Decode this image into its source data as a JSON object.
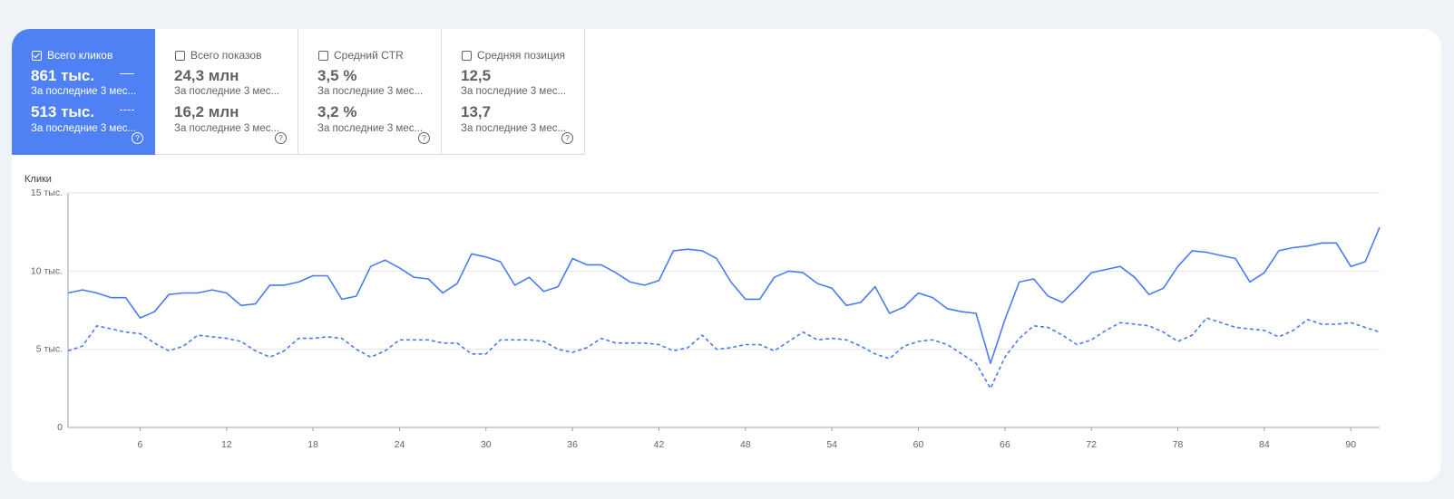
{
  "tiles": [
    {
      "label": "Всего кликов",
      "checked": true,
      "value1": "861 тыс.",
      "sub1": "За последние 3 мес...",
      "value2": "513 тыс.",
      "sub2": "За последние 3 мес...",
      "help": "?"
    },
    {
      "label": "Всего показов",
      "checked": false,
      "value1": "24,3 млн",
      "sub1": "За последние 3 мес...",
      "value2": "16,2 млн",
      "sub2": "За последние 3 мес...",
      "help": "?"
    },
    {
      "label": "Средний CTR",
      "checked": false,
      "value1": "3,5 %",
      "sub1": "За последние 3 мес...",
      "value2": "3,2 %",
      "sub2": "За последние 3 мес...",
      "help": "?"
    },
    {
      "label": "Средняя позиция",
      "checked": false,
      "value1": "12,5",
      "sub1": "За последние 3 мес...",
      "value2": "13,7",
      "sub2": "За последние 3 мес...",
      "help": "?"
    }
  ],
  "colors": {
    "accent": "#4f81f5",
    "line": "#4a7cf0",
    "grid": "#e6e6e6",
    "axis": "#9aa0a6",
    "text": "#5f6368"
  },
  "chart_data": {
    "type": "line",
    "ylabel": "Клики",
    "ylim": [
      0,
      15000
    ],
    "yticks": [
      {
        "v": 0,
        "label": "0"
      },
      {
        "v": 5000,
        "label": "5 тыс."
      },
      {
        "v": 10000,
        "label": "10 тыс."
      },
      {
        "v": 15000,
        "label": "15 тыс."
      }
    ],
    "xlim": [
      1,
      92
    ],
    "xticks": [
      6,
      12,
      18,
      24,
      30,
      36,
      42,
      48,
      54,
      60,
      66,
      72,
      78,
      84,
      90
    ],
    "grid": true,
    "series": [
      {
        "style": "solid",
        "values": [
          8600,
          8800,
          8600,
          8300,
          8300,
          7000,
          7400,
          8500,
          8600,
          8600,
          8800,
          8600,
          7800,
          7900,
          9100,
          9100,
          9300,
          9700,
          9700,
          8200,
          8400,
          10300,
          10700,
          10200,
          9600,
          9500,
          8600,
          9200,
          11100,
          10900,
          10600,
          9100,
          9600,
          8700,
          9000,
          10800,
          10400,
          10400,
          9900,
          9300,
          9100,
          9400,
          11300,
          11400,
          11300,
          10800,
          9300,
          8200,
          8200,
          9600,
          10000,
          9900,
          9200,
          8900,
          7800,
          8000,
          9000,
          7300,
          7700,
          8600,
          8300,
          7600,
          7400,
          7300,
          4100,
          6900,
          9300,
          9500,
          8400,
          8000,
          8900,
          9900,
          10100,
          10300,
          9600,
          8500,
          8900,
          10300,
          11300,
          11200,
          11000,
          10800,
          9300,
          9900,
          11300,
          11500,
          11600,
          11800,
          11800,
          10300,
          10600,
          12800
        ]
      },
      {
        "style": "dashed",
        "values": [
          4900,
          5200,
          6500,
          6300,
          6100,
          6000,
          5400,
          4900,
          5200,
          5900,
          5800,
          5700,
          5500,
          4900,
          4500,
          4900,
          5700,
          5700,
          5800,
          5700,
          5000,
          4500,
          4900,
          5600,
          5600,
          5600,
          5400,
          5400,
          4700,
          4700,
          5600,
          5600,
          5600,
          5500,
          5000,
          4800,
          5100,
          5700,
          5400,
          5400,
          5400,
          5300,
          4900,
          5100,
          5900,
          5000,
          5100,
          5300,
          5300,
          4900,
          5500,
          6100,
          5600,
          5700,
          5600,
          5200,
          4700,
          4400,
          5200,
          5500,
          5600,
          5300,
          4700,
          4100,
          2500,
          4500,
          5700,
          6500,
          6400,
          5900,
          5300,
          5600,
          6200,
          6700,
          6600,
          6500,
          6100,
          5500,
          5900,
          7000,
          6700,
          6400,
          6300,
          6200,
          5800,
          6200,
          6900,
          6600,
          6600,
          6700,
          6400,
          6100
        ]
      }
    ]
  }
}
